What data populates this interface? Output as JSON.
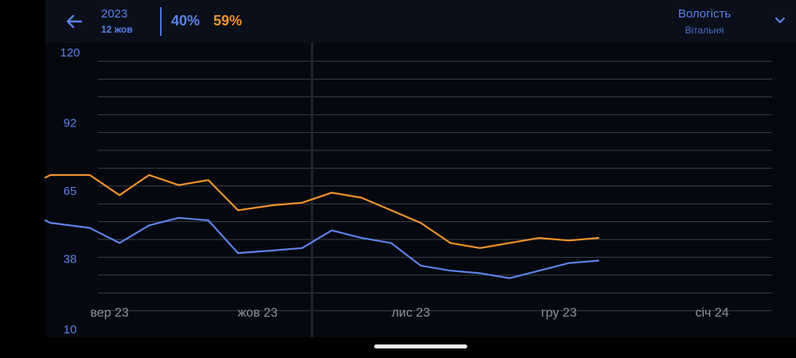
{
  "header": {
    "back_icon": "arrow-left-icon",
    "year": "2023",
    "day": "12 жов",
    "value_blue": "40%",
    "value_orange": "59%",
    "sensor_name": "Вологість",
    "sensor_room": "Вітальня",
    "dropdown_icon": "chevron-down-icon"
  },
  "colors": {
    "accent_blue": "#5b82e6",
    "accent_orange": "#f0922b",
    "grid": "#3a3f48",
    "axis_label": "#5b82e6",
    "month_label": "#8d929b"
  },
  "chart_data": {
    "type": "line",
    "y_ticks": [
      "120",
      "92",
      "65",
      "38",
      "10"
    ],
    "ylim": [
      10,
      120
    ],
    "x_ticks": [
      {
        "label": "вер 23",
        "date": "2023-09-01"
      },
      {
        "label": "жов 23",
        "date": "2023-10-01"
      },
      {
        "label": "лис 23",
        "date": "2023-11-01"
      },
      {
        "label": "гру 23",
        "date": "2023-12-01"
      },
      {
        "label": "січ 24",
        "date": "2024-01-01"
      }
    ],
    "xlim": [
      "2023-08-19",
      "2024-01-18"
    ],
    "selected_date": "2023-10-12",
    "grid": true,
    "series": [
      {
        "color": "#f0922b",
        "points": [
          [
            "2023-08-19",
            70
          ],
          [
            "2023-08-20",
            71
          ],
          [
            "2023-08-28",
            71
          ],
          [
            "2023-09-03",
            63
          ],
          [
            "2023-09-09",
            71
          ],
          [
            "2023-09-15",
            67
          ],
          [
            "2023-09-21",
            69
          ],
          [
            "2023-09-27",
            57
          ],
          [
            "2023-10-04",
            59
          ],
          [
            "2023-10-10",
            60
          ],
          [
            "2023-10-16",
            64
          ],
          [
            "2023-10-22",
            62
          ],
          [
            "2023-10-28",
            57
          ],
          [
            "2023-11-03",
            52
          ],
          [
            "2023-11-09",
            44
          ],
          [
            "2023-11-15",
            42
          ],
          [
            "2023-11-21",
            44
          ],
          [
            "2023-11-27",
            46
          ],
          [
            "2023-12-03",
            45
          ],
          [
            "2023-12-09",
            46
          ]
        ]
      },
      {
        "color": "#5b82e6",
        "points": [
          [
            "2023-08-19",
            53
          ],
          [
            "2023-08-20",
            52
          ],
          [
            "2023-08-28",
            50
          ],
          [
            "2023-09-03",
            44
          ],
          [
            "2023-09-09",
            51
          ],
          [
            "2023-09-15",
            54
          ],
          [
            "2023-09-21",
            53
          ],
          [
            "2023-09-27",
            40
          ],
          [
            "2023-10-04",
            41
          ],
          [
            "2023-10-10",
            42
          ],
          [
            "2023-10-16",
            49
          ],
          [
            "2023-10-22",
            46
          ],
          [
            "2023-10-28",
            44
          ],
          [
            "2023-11-03",
            35
          ],
          [
            "2023-11-09",
            33
          ],
          [
            "2023-11-15",
            32
          ],
          [
            "2023-11-21",
            30
          ],
          [
            "2023-11-27",
            33
          ],
          [
            "2023-12-03",
            36
          ],
          [
            "2023-12-09",
            37
          ]
        ]
      }
    ]
  }
}
